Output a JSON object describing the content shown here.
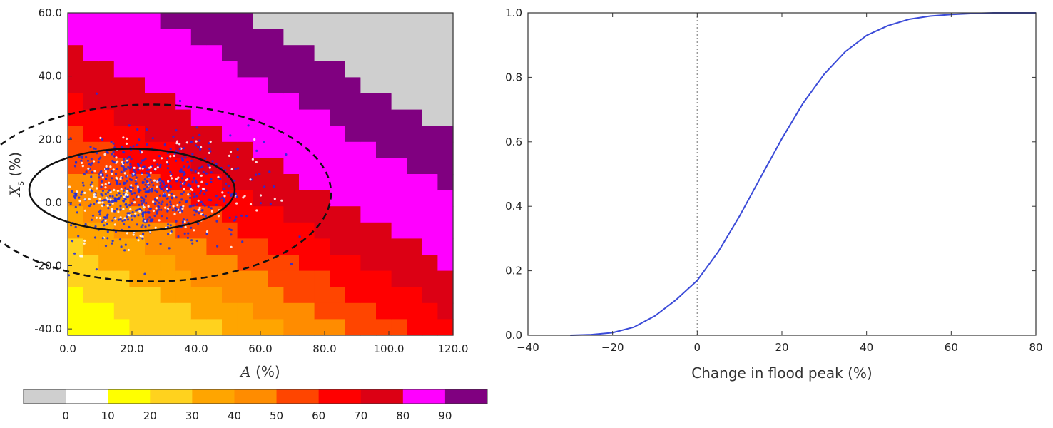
{
  "colorbar": {
    "colors": [
      "#cfcfcf",
      "#ffffff",
      "#ffff00",
      "#ffd21e",
      "#ffa500",
      "#ff8c00",
      "#ff4500",
      "#ff0000",
      "#dc0014",
      "#ff00ff",
      "#800080"
    ],
    "labels": [
      "0",
      "10",
      "20",
      "30",
      "40",
      "50",
      "60",
      "70",
      "80",
      "90"
    ]
  },
  "chart_data": [
    {
      "type": "heatmap",
      "xlabel": "A (%)",
      "xlabel_var": "A",
      "xlabel_unit": " (%)",
      "ylabel": "X_s (%)",
      "ylabel_var": "X",
      "ylabel_sub": "s",
      "ylabel_unit": " (%)",
      "xlim": [
        0,
        120
      ],
      "ylim": [
        -42,
        60
      ],
      "xticks": [
        "0.0",
        "20.0",
        "40.0",
        "60.0",
        "80.0",
        "100.0",
        "120.0"
      ],
      "yticks": [
        "-40.0",
        "-20.0",
        "0.0",
        "20.0",
        "40.0",
        "60.0"
      ],
      "xtick_values": [
        0,
        20,
        40,
        60,
        80,
        100,
        120
      ],
      "ytick_values": [
        -40,
        -20,
        0,
        20,
        40,
        60
      ],
      "grid_x_cells": 25,
      "grid_y_cells": 20,
      "class_boundaries": [
        [
          -1.0,
          2
        ],
        [
          -0.45,
          3
        ],
        [
          -0.2,
          4
        ],
        [
          0.0,
          5
        ],
        [
          0.2,
          6
        ],
        [
          0.4,
          7
        ],
        [
          0.6,
          8
        ],
        [
          0.85,
          9
        ],
        [
          1.25,
          10
        ],
        [
          1.55,
          11
        ]
      ],
      "scatter_center": [
        20,
        4
      ],
      "contour_inner": {
        "center": [
          20,
          4
        ],
        "radius": [
          32,
          13
        ],
        "style": "solid"
      },
      "contour_outer": {
        "center": [
          26,
          3
        ],
        "radius": [
          56,
          28
        ],
        "style": "dashed"
      }
    },
    {
      "type": "line",
      "xlabel": "Change in flood peak (%)",
      "ylabel": "",
      "xlim": [
        -40,
        80
      ],
      "ylim": [
        0,
        1.0
      ],
      "xticks": [
        "−40",
        "−20",
        "0",
        "20",
        "40",
        "60",
        "80"
      ],
      "yticks": [
        "0.0",
        "0.2",
        "0.4",
        "0.6",
        "0.8",
        "1.0"
      ],
      "xtick_values": [
        -40,
        -20,
        0,
        20,
        40,
        60,
        80
      ],
      "ytick_values": [
        0,
        0.2,
        0.4,
        0.6,
        0.8,
        1.0
      ],
      "reference_line_x": 0,
      "series": [
        {
          "color": "#3b4bd8",
          "x": [
            -30,
            -25,
            -20,
            -15,
            -10,
            -5,
            0,
            5,
            10,
            15,
            20,
            25,
            30,
            35,
            40,
            45,
            50,
            55,
            60,
            65,
            70,
            75,
            80
          ],
          "y": [
            0.0,
            0.002,
            0.008,
            0.025,
            0.06,
            0.11,
            0.17,
            0.26,
            0.37,
            0.49,
            0.61,
            0.72,
            0.81,
            0.88,
            0.93,
            0.96,
            0.98,
            0.99,
            0.995,
            0.998,
            1.0,
            1.0,
            1.0
          ]
        }
      ]
    }
  ]
}
